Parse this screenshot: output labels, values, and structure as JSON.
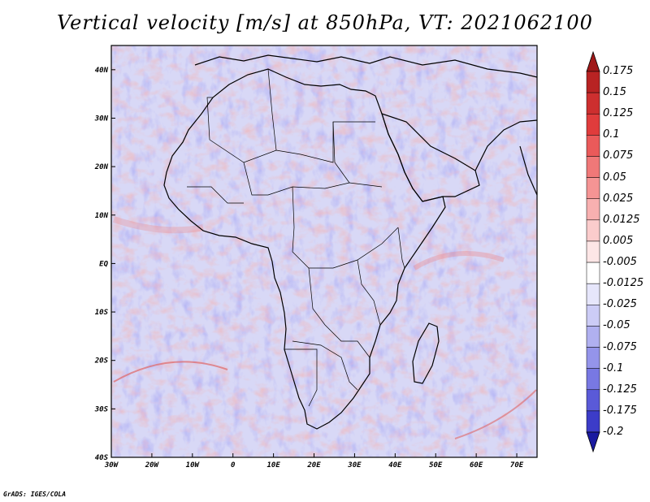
{
  "title": "Vertical velocity [m/s] at 850hPa, VT: 2021062100",
  "credit": "GrADS: IGES/COLA",
  "map": {
    "region": "Africa",
    "lon_range": [
      -30,
      75
    ],
    "lat_range": [
      -40,
      45
    ],
    "lon_ticks": [
      "30W",
      "20W",
      "10W",
      "0",
      "10E",
      "20E",
      "30E",
      "40E",
      "50E",
      "60E",
      "70E"
    ],
    "lat_ticks": [
      "40N",
      "30N",
      "20N",
      "10N",
      "EQ",
      "10S",
      "20S",
      "30S",
      "40S"
    ],
    "background_color": "#d8d8f6"
  },
  "colorbar": {
    "levels": [
      {
        "label": "0.175",
        "color": "#b82323"
      },
      {
        "label": "0.15",
        "color": "#cd2f2f"
      },
      {
        "label": "0.125",
        "color": "#e03c3c"
      },
      {
        "label": "0.1",
        "color": "#ea5a5a"
      },
      {
        "label": "0.075",
        "color": "#f07878"
      },
      {
        "label": "0.05",
        "color": "#f59494"
      },
      {
        "label": "0.025",
        "color": "#f8b0b0"
      },
      {
        "label": "0.0125",
        "color": "#fbcccc"
      },
      {
        "label": "0.005",
        "color": "#fde6e6"
      },
      {
        "label": "-0.005",
        "color": "#ffffff"
      },
      {
        "label": "-0.0125",
        "color": "#e6e6fb"
      },
      {
        "label": "-0.025",
        "color": "#ccccf6"
      },
      {
        "label": "-0.05",
        "color": "#b0b0f0"
      },
      {
        "label": "-0.075",
        "color": "#9494ea"
      },
      {
        "label": "-0.1",
        "color": "#7878e3"
      },
      {
        "label": "-0.125",
        "color": "#5a5ad8"
      },
      {
        "label": "-0.175",
        "color": "#3c3cc8"
      },
      {
        "label": "-0.2",
        "color": "#2323b0"
      }
    ],
    "top_color": "#a01818",
    "bottom_color": "#1a1aa0"
  }
}
